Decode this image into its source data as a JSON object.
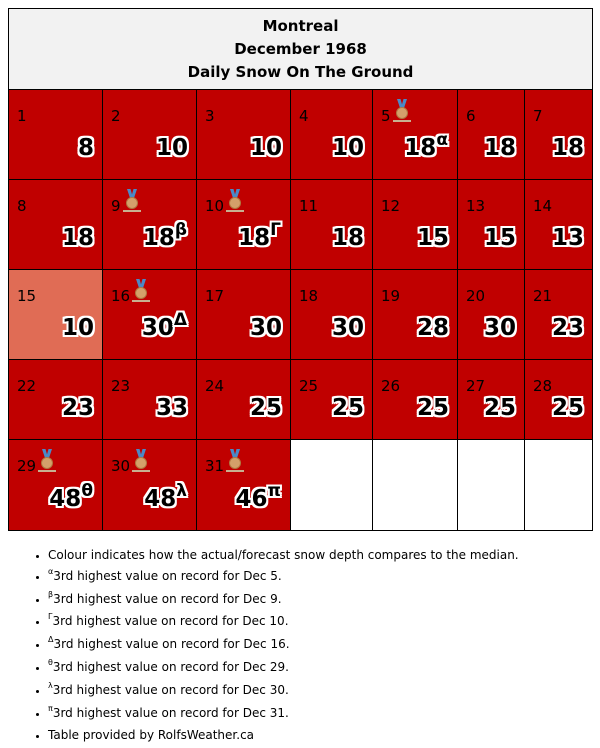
{
  "header": {
    "city": "Montreal",
    "month": "December 1968",
    "metric": "Daily Snow On The Ground"
  },
  "colors": {
    "above_median": "#c00000",
    "near_median": "#e06c55",
    "empty": "#ffffff"
  },
  "days": [
    {
      "day": "1",
      "value": "8",
      "marker": "",
      "medal": false
    },
    {
      "day": "2",
      "value": "10",
      "marker": "",
      "medal": false
    },
    {
      "day": "3",
      "value": "10",
      "marker": "",
      "medal": false
    },
    {
      "day": "4",
      "value": "10",
      "marker": "",
      "medal": false
    },
    {
      "day": "5",
      "value": "18",
      "marker": "α",
      "medal": true
    },
    {
      "day": "6",
      "value": "18",
      "marker": "",
      "medal": false
    },
    {
      "day": "7",
      "value": "18",
      "marker": "",
      "medal": false
    },
    {
      "day": "8",
      "value": "18",
      "marker": "",
      "medal": false
    },
    {
      "day": "9",
      "value": "18",
      "marker": "β",
      "medal": true
    },
    {
      "day": "10",
      "value": "18",
      "marker": "Γ",
      "medal": true
    },
    {
      "day": "11",
      "value": "18",
      "marker": "",
      "medal": false
    },
    {
      "day": "12",
      "value": "15",
      "marker": "",
      "medal": false
    },
    {
      "day": "13",
      "value": "15",
      "marker": "",
      "medal": false
    },
    {
      "day": "14",
      "value": "13",
      "marker": "",
      "medal": false
    },
    {
      "day": "15",
      "value": "10",
      "marker": "",
      "medal": false
    },
    {
      "day": "16",
      "value": "30",
      "marker": "Δ",
      "medal": true
    },
    {
      "day": "17",
      "value": "30",
      "marker": "",
      "medal": false
    },
    {
      "day": "18",
      "value": "30",
      "marker": "",
      "medal": false
    },
    {
      "day": "19",
      "value": "28",
      "marker": "",
      "medal": false
    },
    {
      "day": "20",
      "value": "30",
      "marker": "",
      "medal": false
    },
    {
      "day": "21",
      "value": "23",
      "marker": "",
      "medal": false
    },
    {
      "day": "22",
      "value": "23",
      "marker": "",
      "medal": false
    },
    {
      "day": "23",
      "value": "33",
      "marker": "",
      "medal": false
    },
    {
      "day": "24",
      "value": "25",
      "marker": "",
      "medal": false
    },
    {
      "day": "25",
      "value": "25",
      "marker": "",
      "medal": false
    },
    {
      "day": "26",
      "value": "25",
      "marker": "",
      "medal": false
    },
    {
      "day": "27",
      "value": "25",
      "marker": "",
      "medal": false
    },
    {
      "day": "28",
      "value": "25",
      "marker": "",
      "medal": false
    },
    {
      "day": "29",
      "value": "48",
      "marker": "θ",
      "medal": true
    },
    {
      "day": "30",
      "value": "48",
      "marker": "λ",
      "medal": true
    },
    {
      "day": "31",
      "value": "46",
      "marker": "π",
      "medal": true
    }
  ],
  "notes": [
    {
      "marker": "",
      "text": "Colour indicates how the actual/forecast snow depth compares to the median."
    },
    {
      "marker": "α",
      "text": "3rd highest value on record for Dec 5."
    },
    {
      "marker": "β",
      "text": "3rd highest value on record for Dec 9."
    },
    {
      "marker": "Γ",
      "text": "3rd highest value on record for Dec 10."
    },
    {
      "marker": "Δ",
      "text": "3rd highest value on record for Dec 16."
    },
    {
      "marker": "θ",
      "text": "3rd highest value on record for Dec 29."
    },
    {
      "marker": "λ",
      "text": "3rd highest value on record for Dec 30."
    },
    {
      "marker": "π",
      "text": "3rd highest value on record for Dec 31."
    },
    {
      "marker": "",
      "text": "Table provided by RolfsWeather.ca"
    }
  ]
}
